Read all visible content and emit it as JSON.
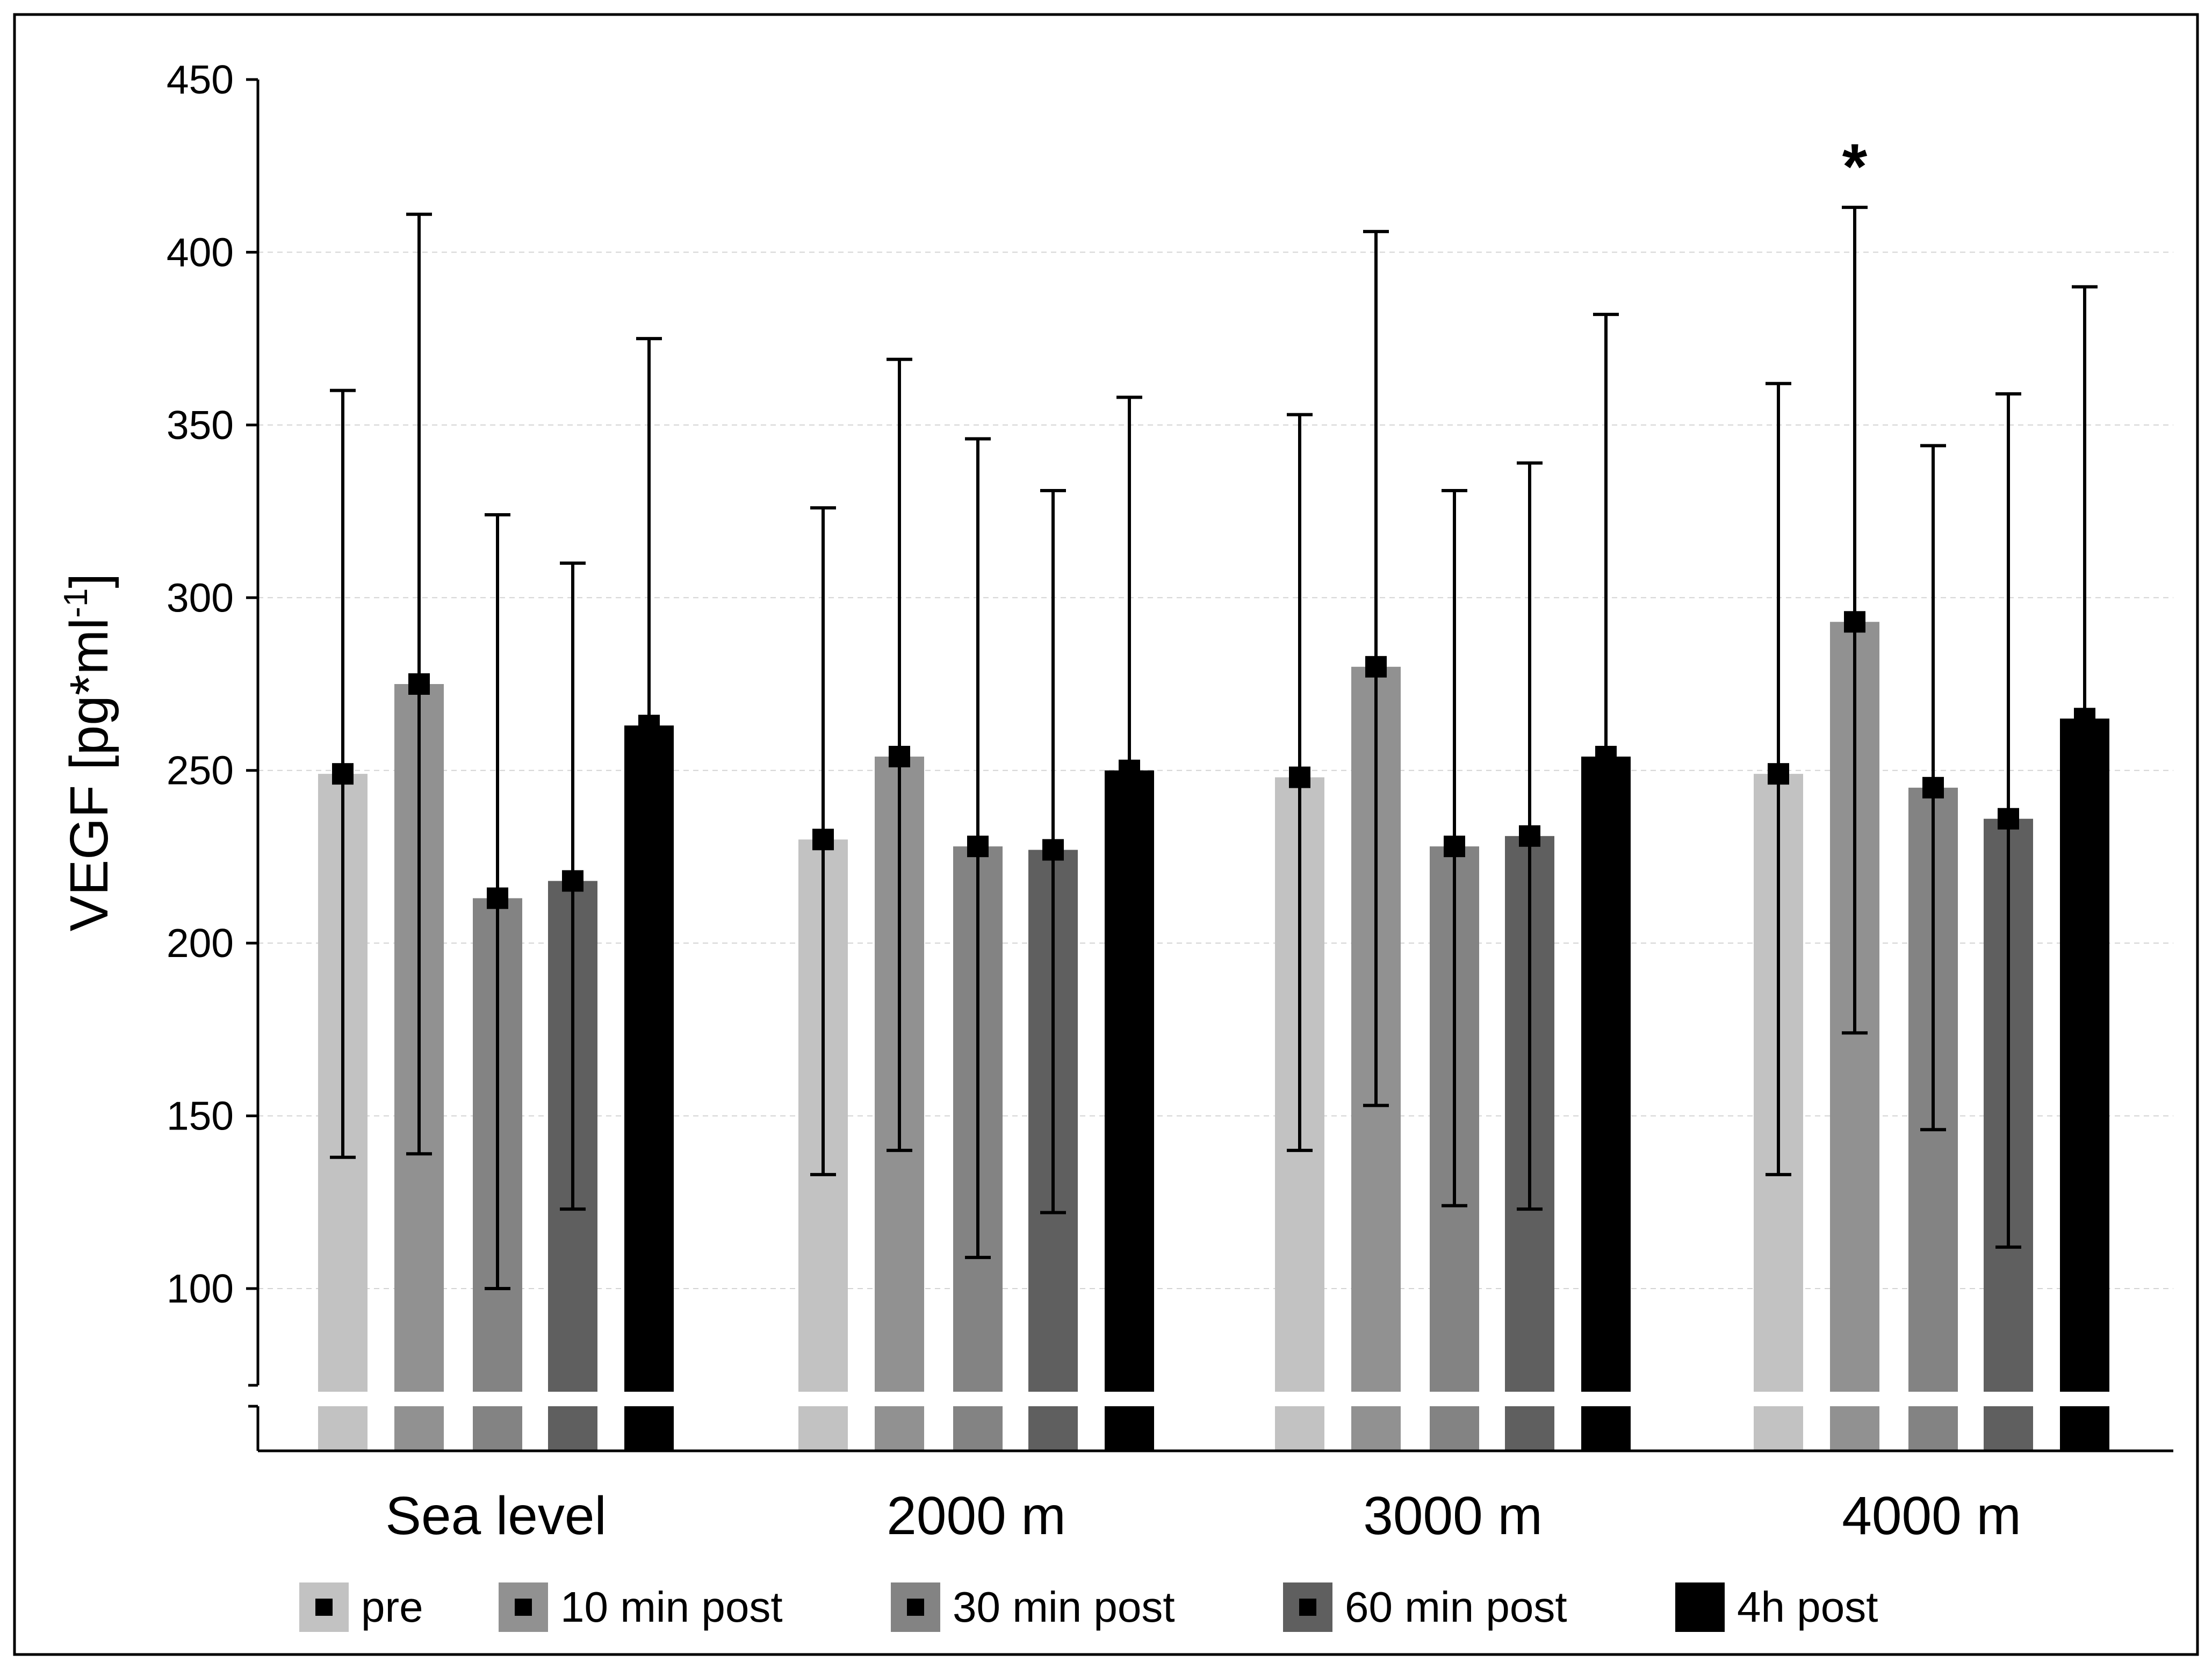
{
  "chart_data": {
    "type": "bar",
    "title": "",
    "xlabel": "",
    "ylabel": {
      "main": "VEGF [pg*ml",
      "superscript": "-1",
      "suffix": "]"
    },
    "ylim": [
      70,
      450
    ],
    "yticks": [
      100,
      150,
      200,
      250,
      300,
      350,
      400,
      450
    ],
    "axis_break": true,
    "grid": "horizontal dotted",
    "legend_position": "bottom",
    "categories": [
      "Sea level",
      "2000 m",
      "3000 m",
      "4000 m"
    ],
    "series": [
      {
        "name": "pre",
        "color": "#c2c2c2",
        "values": [
          249,
          230,
          248,
          249
        ],
        "error_low": [
          138,
          133,
          140,
          133
        ],
        "error_high": [
          360,
          326,
          353,
          362
        ]
      },
      {
        "name": "10 min post",
        "color": "#919191",
        "values": [
          275,
          254,
          280,
          293
        ],
        "error_low": [
          139,
          140,
          153,
          174
        ],
        "error_high": [
          411,
          369,
          406,
          413
        ]
      },
      {
        "name": "30 min post",
        "color": "#838383",
        "values": [
          213,
          228,
          228,
          245
        ],
        "error_low": [
          100,
          109,
          124,
          146
        ],
        "error_high": [
          324,
          346,
          331,
          344
        ]
      },
      {
        "name": "60 min post",
        "color": "#5f5f5f",
        "values": [
          218,
          227,
          231,
          236
        ],
        "error_low": [
          123,
          122,
          123,
          112
        ],
        "error_high": [
          310,
          331,
          339,
          359
        ]
      },
      {
        "name": "4h post",
        "color": "#000000",
        "values": [
          263,
          250,
          254,
          265
        ],
        "error_low": [
          263,
          250,
          254,
          265
        ],
        "error_high": [
          375,
          358,
          382,
          390
        ]
      }
    ],
    "annotations": [
      {
        "text": "*",
        "category": "4000 m",
        "series": "10 min post"
      }
    ]
  }
}
